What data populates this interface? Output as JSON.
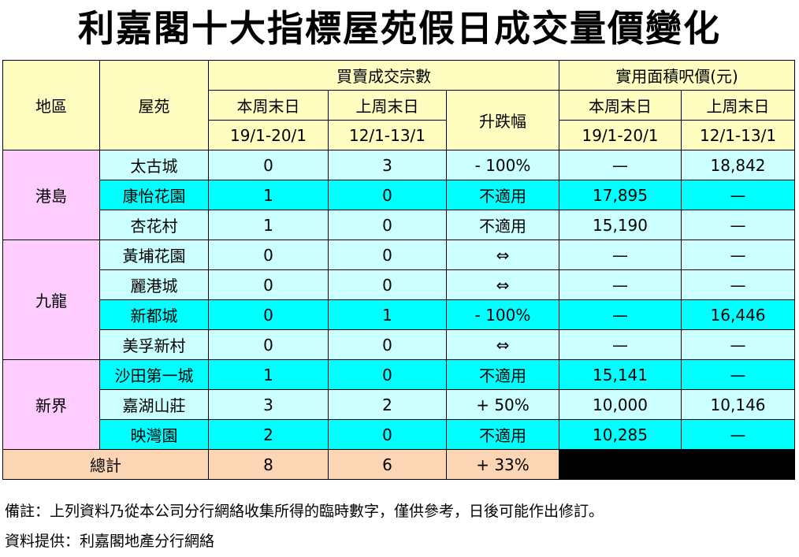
{
  "title": "利嘉閣十大指標屋苑假日成交量價變化",
  "header": {
    "region": "地區",
    "estate": "屋苑",
    "transactions_group": "買賣成交宗數",
    "price_group": "實用面積呎價(元)",
    "this_weekend": "本周末日",
    "last_weekend": "上周末日",
    "this_dates": "19/1-20/1",
    "last_dates": "12/1-13/1",
    "change": "升跌幅"
  },
  "regions": [
    {
      "name": "港島",
      "rows": [
        {
          "estate": "太古城",
          "this": "0",
          "last": "3",
          "change": "- 100%",
          "price_this": "—",
          "price_last": "18,842"
        },
        {
          "estate": "康怡花園",
          "this": "1",
          "last": "0",
          "change": "不適用",
          "price_this": "17,895",
          "price_last": "—"
        },
        {
          "estate": "杏花村",
          "this": "1",
          "last": "0",
          "change": "不適用",
          "price_this": "15,190",
          "price_last": "—"
        }
      ]
    },
    {
      "name": "九龍",
      "rows": [
        {
          "estate": "黃埔花園",
          "this": "0",
          "last": "0",
          "change": "⇔",
          "price_this": "—",
          "price_last": "—"
        },
        {
          "estate": "麗港城",
          "this": "0",
          "last": "0",
          "change": "⇔",
          "price_this": "—",
          "price_last": "—"
        },
        {
          "estate": "新都城",
          "this": "0",
          "last": "1",
          "change": "- 100%",
          "price_this": "—",
          "price_last": "16,446"
        },
        {
          "estate": "美孚新村",
          "this": "0",
          "last": "0",
          "change": "⇔",
          "price_this": "—",
          "price_last": "—"
        }
      ]
    },
    {
      "name": "新界",
      "rows": [
        {
          "estate": "沙田第一城",
          "this": "1",
          "last": "0",
          "change": "不適用",
          "price_this": "15,141",
          "price_last": "—"
        },
        {
          "estate": "嘉湖山莊",
          "this": "3",
          "last": "2",
          "change": "+ 50%",
          "price_this": "10,000",
          "price_last": "10,146"
        },
        {
          "estate": "映灣園",
          "this": "2",
          "last": "0",
          "change": "不適用",
          "price_this": "10,285",
          "price_last": "—"
        }
      ]
    }
  ],
  "total": {
    "label": "總計",
    "this": "8",
    "last": "6",
    "change": "+ 33%"
  },
  "notes": {
    "remark": "備註：上列資料乃從本公司分行網絡收集所得的臨時數字，僅供參考，日後可能作出修訂。",
    "source": "資料提供：利嘉閣地產分行網絡"
  }
}
